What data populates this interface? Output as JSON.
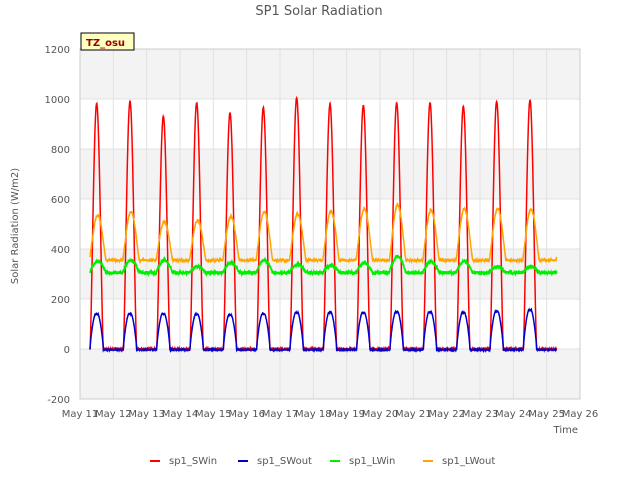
{
  "chart_data": {
    "type": "line",
    "title": "SP1 Solar Radiation",
    "xlabel": "Time",
    "ylabel": "Solar Radiation (W/m2)",
    "xlim": [
      11,
      26
    ],
    "ylim": [
      -200,
      1200
    ],
    "x_ticks": [
      "May 11",
      "May 12",
      "May 13",
      "May 14",
      "May 15",
      "May 16",
      "May 17",
      "May 18",
      "May 19",
      "May 20",
      "May 21",
      "May 22",
      "May 23",
      "May 24",
      "May 25",
      "May 26"
    ],
    "y_ticks": [
      -200,
      0,
      200,
      400,
      600,
      800,
      1000,
      1200
    ],
    "grid": "horizontal bands",
    "legend_position": "bottom",
    "annotation": "TZ_osu",
    "days": [
      "May 11",
      "May 12",
      "May 13",
      "May 14",
      "May 15",
      "May 16",
      "May 17",
      "May 18",
      "May 19",
      "May 20",
      "May 21",
      "May 22",
      "May 23",
      "May 24",
      "May 25"
    ],
    "series": [
      {
        "name": "sp1_SWin",
        "color": "#ff0000",
        "daily_peak": [
          980,
          990,
          930,
          985,
          945,
          965,
          1005,
          980,
          975,
          985,
          985,
          970,
          990,
          995
        ],
        "night": 0
      },
      {
        "name": "sp1_SWout",
        "color": "#0000cc",
        "daily_peak": [
          140,
          140,
          140,
          138,
          136,
          140,
          145,
          145,
          145,
          148,
          148,
          145,
          150,
          155
        ],
        "night": -3
      },
      {
        "name": "sp1_LWin",
        "color": "#00ee00",
        "daily_peak": [
          350,
          355,
          355,
          330,
          345,
          355,
          340,
          335,
          345,
          370,
          350,
          350,
          330,
          330
        ],
        "night": 305
      },
      {
        "name": "sp1_LWout",
        "color": "#ffa500",
        "daily_peak": [
          535,
          550,
          510,
          515,
          530,
          550,
          540,
          550,
          560,
          575,
          555,
          560,
          560,
          560
        ],
        "night": 355
      }
    ]
  }
}
